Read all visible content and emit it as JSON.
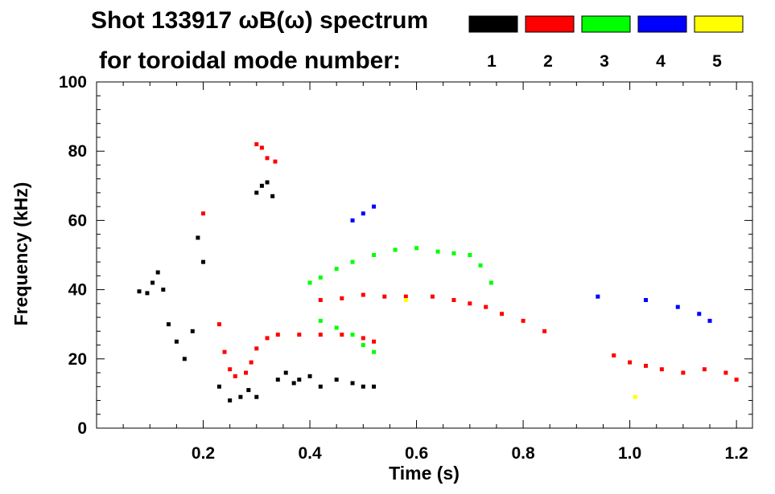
{
  "chart_data": {
    "type": "scatter",
    "title_line1": "Shot 133917 ωB(ω) spectrum",
    "title_line2": "for toroidal mode number:",
    "xlabel": "Time (s)",
    "ylabel": "Frequency (kHz)",
    "xlim": [
      0.0,
      1.23
    ],
    "ylim": [
      0,
      100
    ],
    "xticks": [
      0.2,
      0.4,
      0.6,
      0.8,
      1.0,
      1.2
    ],
    "xtick_labels": [
      "0.2",
      "0.4",
      "0.6",
      "0.8",
      "1.0",
      "1.2"
    ],
    "xminor_step": 0.05,
    "yticks": [
      0,
      20,
      40,
      60,
      80,
      100
    ],
    "ytick_labels": [
      "0",
      "20",
      "40",
      "60",
      "80",
      "100"
    ],
    "yminor_step": 4,
    "legend": [
      {
        "label": "1",
        "color": "#000000"
      },
      {
        "label": "2",
        "color": "#ff0000"
      },
      {
        "label": "3",
        "color": "#00ff00"
      },
      {
        "label": "4",
        "color": "#0000ff"
      },
      {
        "label": "5",
        "color": "#ffff00"
      }
    ],
    "series": [
      {
        "name": "n=1",
        "color": "#000000",
        "points": [
          [
            0.08,
            39.5
          ],
          [
            0.095,
            39
          ],
          [
            0.105,
            42
          ],
          [
            0.115,
            45
          ],
          [
            0.125,
            40
          ],
          [
            0.135,
            30
          ],
          [
            0.15,
            25
          ],
          [
            0.165,
            20
          ],
          [
            0.18,
            28
          ],
          [
            0.19,
            55
          ],
          [
            0.2,
            48
          ],
          [
            0.23,
            12
          ],
          [
            0.25,
            8
          ],
          [
            0.27,
            9
          ],
          [
            0.285,
            11
          ],
          [
            0.3,
            9
          ],
          [
            0.3,
            68
          ],
          [
            0.31,
            70
          ],
          [
            0.32,
            71
          ],
          [
            0.33,
            67
          ],
          [
            0.34,
            14
          ],
          [
            0.355,
            16
          ],
          [
            0.37,
            13
          ],
          [
            0.38,
            14
          ],
          [
            0.4,
            15
          ],
          [
            0.42,
            12
          ],
          [
            0.45,
            14
          ],
          [
            0.48,
            13
          ],
          [
            0.5,
            12
          ],
          [
            0.52,
            12
          ]
        ]
      },
      {
        "name": "n=2",
        "color": "#ff0000",
        "points": [
          [
            0.2,
            62
          ],
          [
            0.23,
            30
          ],
          [
            0.24,
            22
          ],
          [
            0.25,
            17
          ],
          [
            0.26,
            15
          ],
          [
            0.28,
            16
          ],
          [
            0.29,
            19
          ],
          [
            0.3,
            23
          ],
          [
            0.32,
            26
          ],
          [
            0.34,
            27
          ],
          [
            0.38,
            27
          ],
          [
            0.42,
            27
          ],
          [
            0.46,
            27
          ],
          [
            0.5,
            26
          ],
          [
            0.52,
            25
          ],
          [
            0.3,
            82
          ],
          [
            0.31,
            81
          ],
          [
            0.32,
            78
          ],
          [
            0.335,
            77
          ],
          [
            0.42,
            37
          ],
          [
            0.46,
            37.5
          ],
          [
            0.5,
            38.5
          ],
          [
            0.54,
            38
          ],
          [
            0.58,
            38
          ],
          [
            0.63,
            38
          ],
          [
            0.67,
            37
          ],
          [
            0.7,
            36
          ],
          [
            0.73,
            35
          ],
          [
            0.76,
            33
          ],
          [
            0.8,
            31
          ],
          [
            0.84,
            28
          ],
          [
            0.97,
            21
          ],
          [
            1.0,
            19
          ],
          [
            1.03,
            18
          ],
          [
            1.06,
            17
          ],
          [
            1.1,
            16
          ],
          [
            1.14,
            17
          ],
          [
            1.18,
            16
          ],
          [
            1.2,
            14
          ]
        ]
      },
      {
        "name": "n=3",
        "color": "#00ff00",
        "points": [
          [
            0.4,
            42
          ],
          [
            0.42,
            43.5
          ],
          [
            0.45,
            46
          ],
          [
            0.48,
            48
          ],
          [
            0.52,
            50
          ],
          [
            0.56,
            51.5
          ],
          [
            0.6,
            52
          ],
          [
            0.64,
            51
          ],
          [
            0.67,
            50.5
          ],
          [
            0.7,
            50
          ],
          [
            0.72,
            47
          ],
          [
            0.74,
            42
          ],
          [
            0.42,
            31
          ],
          [
            0.45,
            29
          ],
          [
            0.48,
            27
          ],
          [
            0.5,
            24
          ],
          [
            0.52,
            22
          ]
        ]
      },
      {
        "name": "n=4",
        "color": "#0000ff",
        "points": [
          [
            0.48,
            60
          ],
          [
            0.5,
            62
          ],
          [
            0.52,
            64
          ],
          [
            0.94,
            38
          ],
          [
            1.03,
            37
          ],
          [
            1.09,
            35
          ],
          [
            1.13,
            33
          ],
          [
            1.15,
            31
          ]
        ]
      },
      {
        "name": "n=5",
        "color": "#ffff00",
        "points": [
          [
            0.58,
            37
          ],
          [
            1.01,
            9
          ]
        ]
      }
    ]
  }
}
